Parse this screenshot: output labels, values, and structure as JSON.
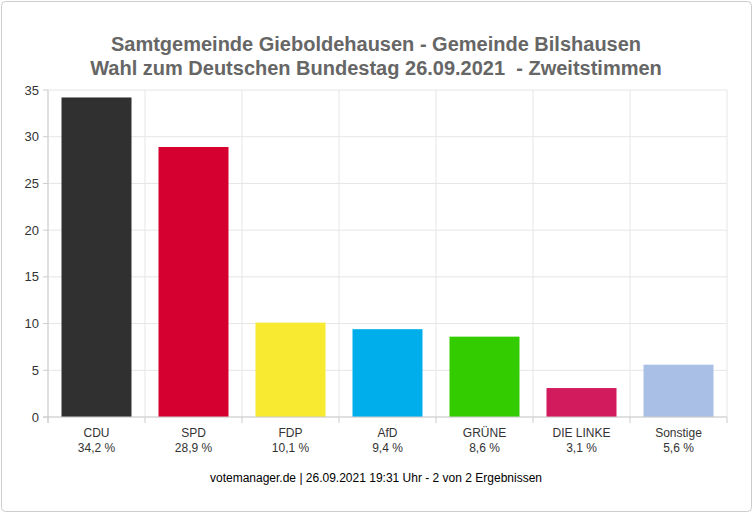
{
  "chart_data": {
    "type": "bar",
    "title": "Samtgemeinde Gieboldehausen - Gemeinde Bilshausen",
    "subtitle": "Wahl zum Deutschen Bundestag 26.09.2021  - Zweitstimmen",
    "categories": [
      "CDU",
      "SPD",
      "FDP",
      "AfD",
      "GRÜNE",
      "DIE LINKE",
      "Sonstige"
    ],
    "values": [
      34.2,
      28.9,
      10.1,
      9.4,
      8.6,
      3.1,
      5.6
    ],
    "value_labels": [
      "34,2 %",
      "28,9 %",
      "10,1 %",
      "9,4 %",
      "8,6 %",
      "3,1 %",
      "5,6 %"
    ],
    "colors": [
      "#303030",
      "#d5002f",
      "#f8ea30",
      "#00aeeb",
      "#33cc00",
      "#d21b5c",
      "#a9bfe6"
    ],
    "ylim": [
      0,
      35
    ],
    "yticks": [
      0,
      5,
      10,
      15,
      20,
      25,
      30,
      35
    ],
    "grid": true,
    "data_labels": true,
    "annotations": [
      "votemanager.de | 26.09.2021 19:31 Uhr - 2 von 2 Ergebnissen"
    ]
  }
}
